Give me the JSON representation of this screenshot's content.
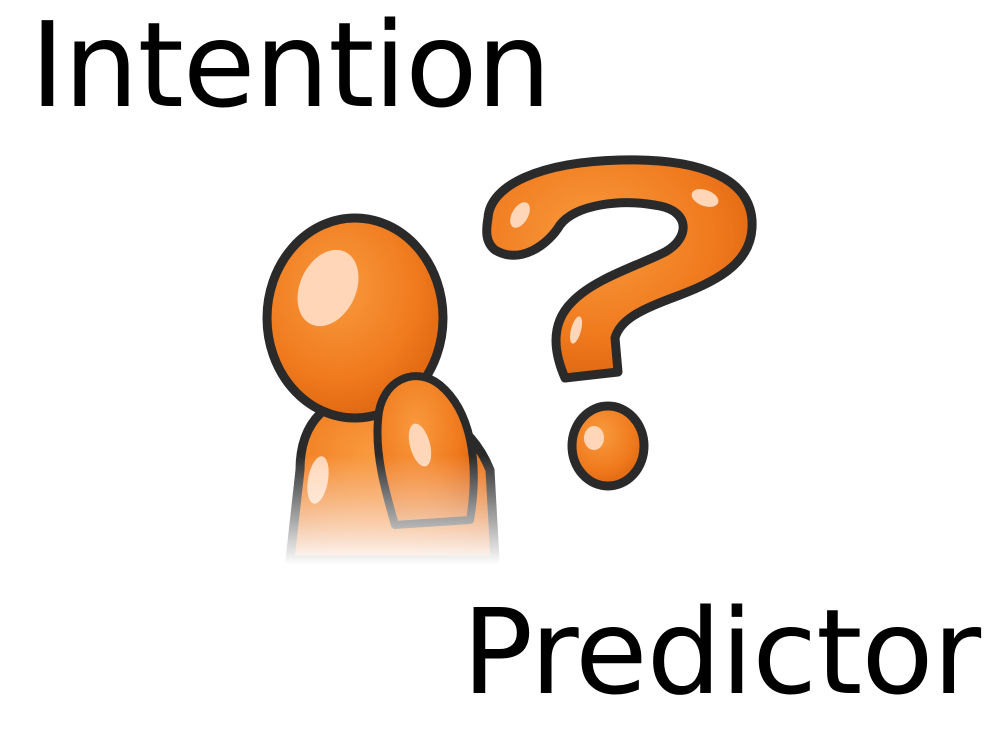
{
  "title": {
    "top_word": "Intention",
    "bottom_word": "Predictor"
  },
  "illustration": {
    "figure_icon": "thinking-person-icon",
    "symbol_icon": "question-mark-icon",
    "colors": {
      "orange": "#f07a1e",
      "orange_dark": "#d8600c",
      "highlight": "#ffd6b8",
      "outline": "#2a2a2a"
    }
  }
}
